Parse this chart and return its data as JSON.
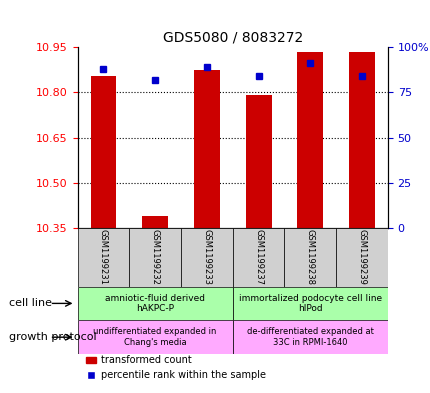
{
  "title": "GDS5080 / 8083272",
  "samples": [
    "GSM1199231",
    "GSM1199232",
    "GSM1199233",
    "GSM1199237",
    "GSM1199238",
    "GSM1199239"
  ],
  "transformed_count": [
    10.855,
    10.39,
    10.875,
    10.79,
    10.935,
    10.935
  ],
  "percentile_rank": [
    88,
    82,
    89,
    84,
    91,
    84
  ],
  "ylim_left": [
    10.35,
    10.95
  ],
  "ylim_right": [
    0,
    100
  ],
  "yticks_left": [
    10.35,
    10.5,
    10.65,
    10.8,
    10.95
  ],
  "yticks_right": [
    0,
    25,
    50,
    75,
    100
  ],
  "bar_color": "#cc0000",
  "marker_color": "#0000cc",
  "cell_line_labels": [
    "amniotic-fluid derived\nhAKPC-P",
    "immortalized podocyte cell line\nhIPod"
  ],
  "growth_protocol_labels": [
    "undifferentiated expanded in\nChang's media",
    "de-differentiated expanded at\n33C in RPMI-1640"
  ],
  "legend_items": [
    "transformed count",
    "percentile rank within the sample"
  ],
  "legend_colors": [
    "#cc0000",
    "#0000cc"
  ],
  "row_label_cell_line": "cell line",
  "row_label_growth": "growth protocol"
}
